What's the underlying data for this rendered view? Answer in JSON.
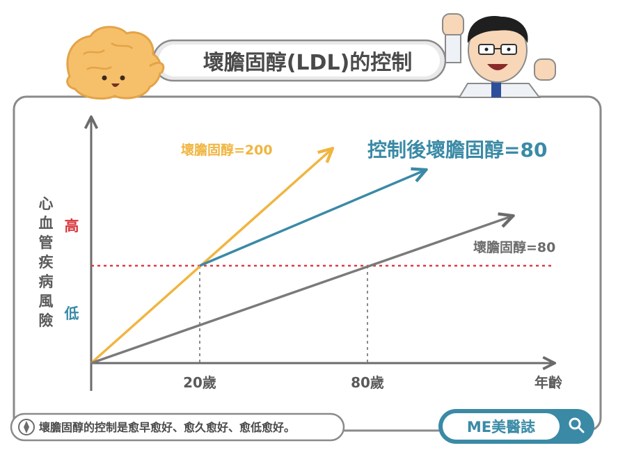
{
  "header": {
    "title": "壞膽固醇(LDL)的控制"
  },
  "brand": {
    "label": "ME美醫誌",
    "search_icon": "magnifier-icon"
  },
  "footer": {
    "note": "壞膽固醇的控制是愈早愈好、愈久愈好、愈低愈好。",
    "icon": "compass-icon"
  },
  "chart_data": {
    "type": "line",
    "ylabel": "心血管疾病風險",
    "xlabel": "年齡",
    "y_levels": [
      {
        "label": "高",
        "color": "#d9363e"
      },
      {
        "label": "低",
        "color": "#3a8aa6"
      }
    ],
    "x_ticks": [
      "20歲",
      "80歲"
    ],
    "risk_threshold": {
      "label": "",
      "color": "#e0393e"
    },
    "series": [
      {
        "name": "壞膽固醇=200",
        "color": "#f0b540"
      },
      {
        "name": "控制後壞膽固醇=80",
        "color": "#3a8aa6"
      },
      {
        "name": "壞膽固醇=80",
        "color": "#7a7a7a"
      }
    ]
  },
  "colors": {
    "frame": "#8a8a8a",
    "axis": "#6b6b6b",
    "title_text": "#4a4a4a",
    "brand_blue": "#3a8aa6"
  },
  "decor": {
    "left_character": "cholesterol-blob-icon",
    "right_character": "doctor-icon"
  }
}
